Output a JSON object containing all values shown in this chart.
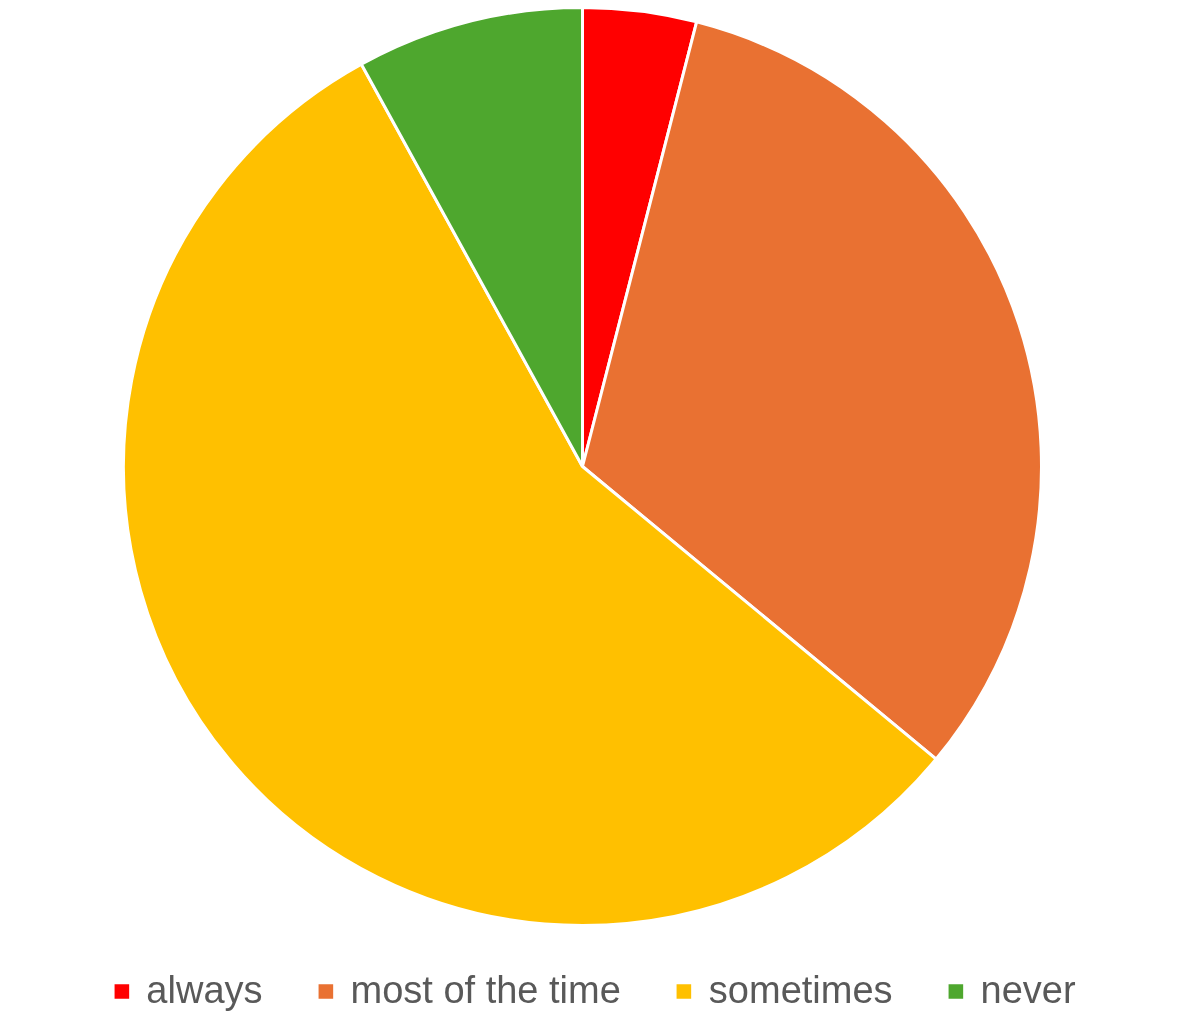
{
  "chart_data": {
    "type": "pie",
    "categories": [
      "always",
      "most of the time",
      "sometimes",
      "never"
    ],
    "values": [
      4,
      32,
      56,
      8
    ],
    "colors": [
      "#ff0000",
      "#e97132",
      "#ffc000",
      "#4ea72e"
    ],
    "legend": "bottom"
  }
}
